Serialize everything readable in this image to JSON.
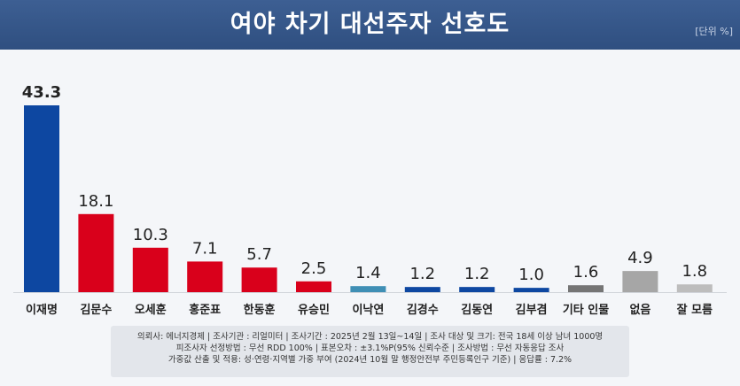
{
  "header": {
    "title": "여야 차기 대선주자 선호도",
    "unit": "[단위 %]"
  },
  "chart_data": {
    "type": "bar",
    "title": "여야 차기 대선주자 선호도",
    "unit": "%",
    "categories": [
      "이재명",
      "김문수",
      "오세훈",
      "홍준표",
      "한동훈",
      "유승민",
      "이낙연",
      "김경수",
      "김동연",
      "김부겸",
      "기타 인물",
      "없음",
      "잘 모름"
    ],
    "values": [
      43.3,
      18.1,
      10.3,
      7.1,
      5.7,
      2.5,
      1.4,
      1.2,
      1.2,
      1.0,
      1.6,
      4.9,
      1.8
    ],
    "value_labels": [
      "43.3",
      "18.1",
      "10.3",
      "7.1",
      "5.7",
      "2.5",
      "1.4",
      "1.2",
      "1.2",
      "1.0",
      "1.6",
      "4.9",
      "1.8"
    ],
    "colors": [
      "#0d47a1",
      "#d9001b",
      "#d9001b",
      "#d9001b",
      "#d9001b",
      "#d9001b",
      "#3f8fb5",
      "#0d47a1",
      "#0d47a1",
      "#0d47a1",
      "#757575",
      "#a6a6a6",
      "#bdbdbd"
    ],
    "ylim": [
      0,
      43.3
    ],
    "grid": false,
    "legend": "none"
  },
  "footer": {
    "line1": "의뢰사: 에너지경제 | 조사기관 : 리얼미터  |  조사기간 : 2025년 2월 13일~14일 | 조사 대상 및 크기: 전국 18세 이상 남녀 1000명",
    "line2": "피조사자 선정방법 : 무선 RDD 100% | 표본오차 : ±3.1%P(95% 신뢰수준 | 조사방법 : 무선 자동응답 조사",
    "line3": "가중값 산출 및 적용: 성·연령·지역별 가중 부여 (2024년 10월 말 행정안전부 주민등록인구 기준) | 응답률 : 7.2%"
  }
}
